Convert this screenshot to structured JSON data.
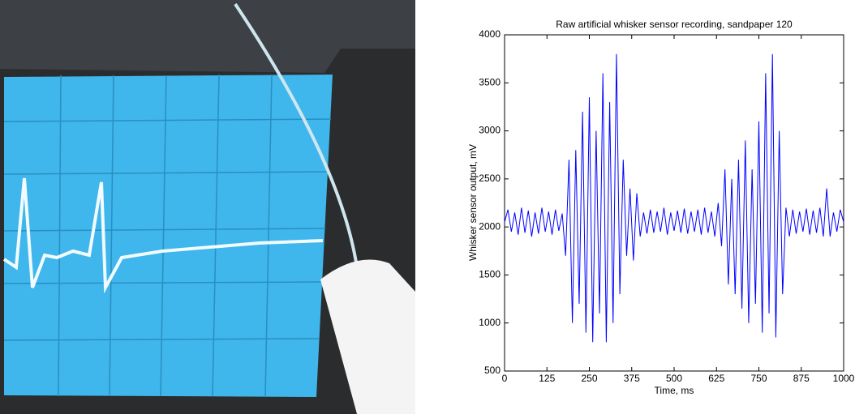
{
  "chart_data": {
    "type": "line",
    "title": "Raw artificial whisker sensor recording, sandpaper 120",
    "xlabel": "Time, ms",
    "ylabel": "Whisker sensor output, mV",
    "xlim": [
      0,
      1000
    ],
    "xticks": [
      0,
      125,
      250,
      375,
      500,
      625,
      750,
      875,
      1000
    ],
    "ylim": [
      500,
      4000
    ],
    "yticks": [
      500,
      1000,
      1500,
      2000,
      2500,
      3000,
      3500,
      4000
    ],
    "grid": false,
    "x": [
      0,
      10,
      20,
      30,
      40,
      50,
      60,
      70,
      80,
      90,
      100,
      110,
      120,
      130,
      140,
      150,
      160,
      170,
      180,
      190,
      200,
      210,
      220,
      230,
      240,
      250,
      260,
      270,
      280,
      290,
      300,
      310,
      320,
      330,
      340,
      350,
      360,
      370,
      380,
      390,
      400,
      410,
      420,
      430,
      440,
      450,
      460,
      470,
      480,
      490,
      500,
      510,
      520,
      530,
      540,
      550,
      560,
      570,
      580,
      590,
      600,
      610,
      620,
      630,
      640,
      650,
      660,
      670,
      680,
      690,
      700,
      710,
      720,
      730,
      740,
      750,
      760,
      770,
      780,
      790,
      800,
      810,
      820,
      830,
      840,
      850,
      860,
      870,
      880,
      890,
      900,
      910,
      920,
      930,
      940,
      950,
      960,
      970,
      980,
      990,
      1000
    ],
    "series": [
      {
        "color": "#0000ff",
        "values": [
          2050,
          2180,
          1950,
          2150,
          1920,
          2200,
          1940,
          2170,
          1900,
          2150,
          1930,
          2200,
          1950,
          2160,
          1920,
          2180,
          1960,
          2140,
          1700,
          2700,
          1000,
          2800,
          1200,
          3200,
          900,
          3350,
          800,
          3000,
          1100,
          3600,
          800,
          3300,
          1000,
          3800,
          1300,
          2700,
          1700,
          2400,
          1650,
          2350,
          1900,
          2150,
          1930,
          2180,
          1940,
          2160,
          1950,
          2200,
          1920,
          2150,
          1960,
          2170,
          1940,
          2190,
          1930,
          2160,
          1950,
          2180,
          1920,
          2200,
          1940,
          2160,
          1900,
          2250,
          1800,
          2600,
          1400,
          2500,
          1300,
          2700,
          1150,
          2900,
          1000,
          2600,
          1200,
          3100,
          900,
          3600,
          1100,
          3800,
          850,
          3000,
          1300,
          2200,
          1900,
          2180,
          1930,
          2160,
          1950,
          2190,
          1920,
          2170,
          1940,
          2200,
          1900,
          2400,
          1900,
          2150,
          1950,
          2180,
          2050
        ]
      }
    ]
  }
}
